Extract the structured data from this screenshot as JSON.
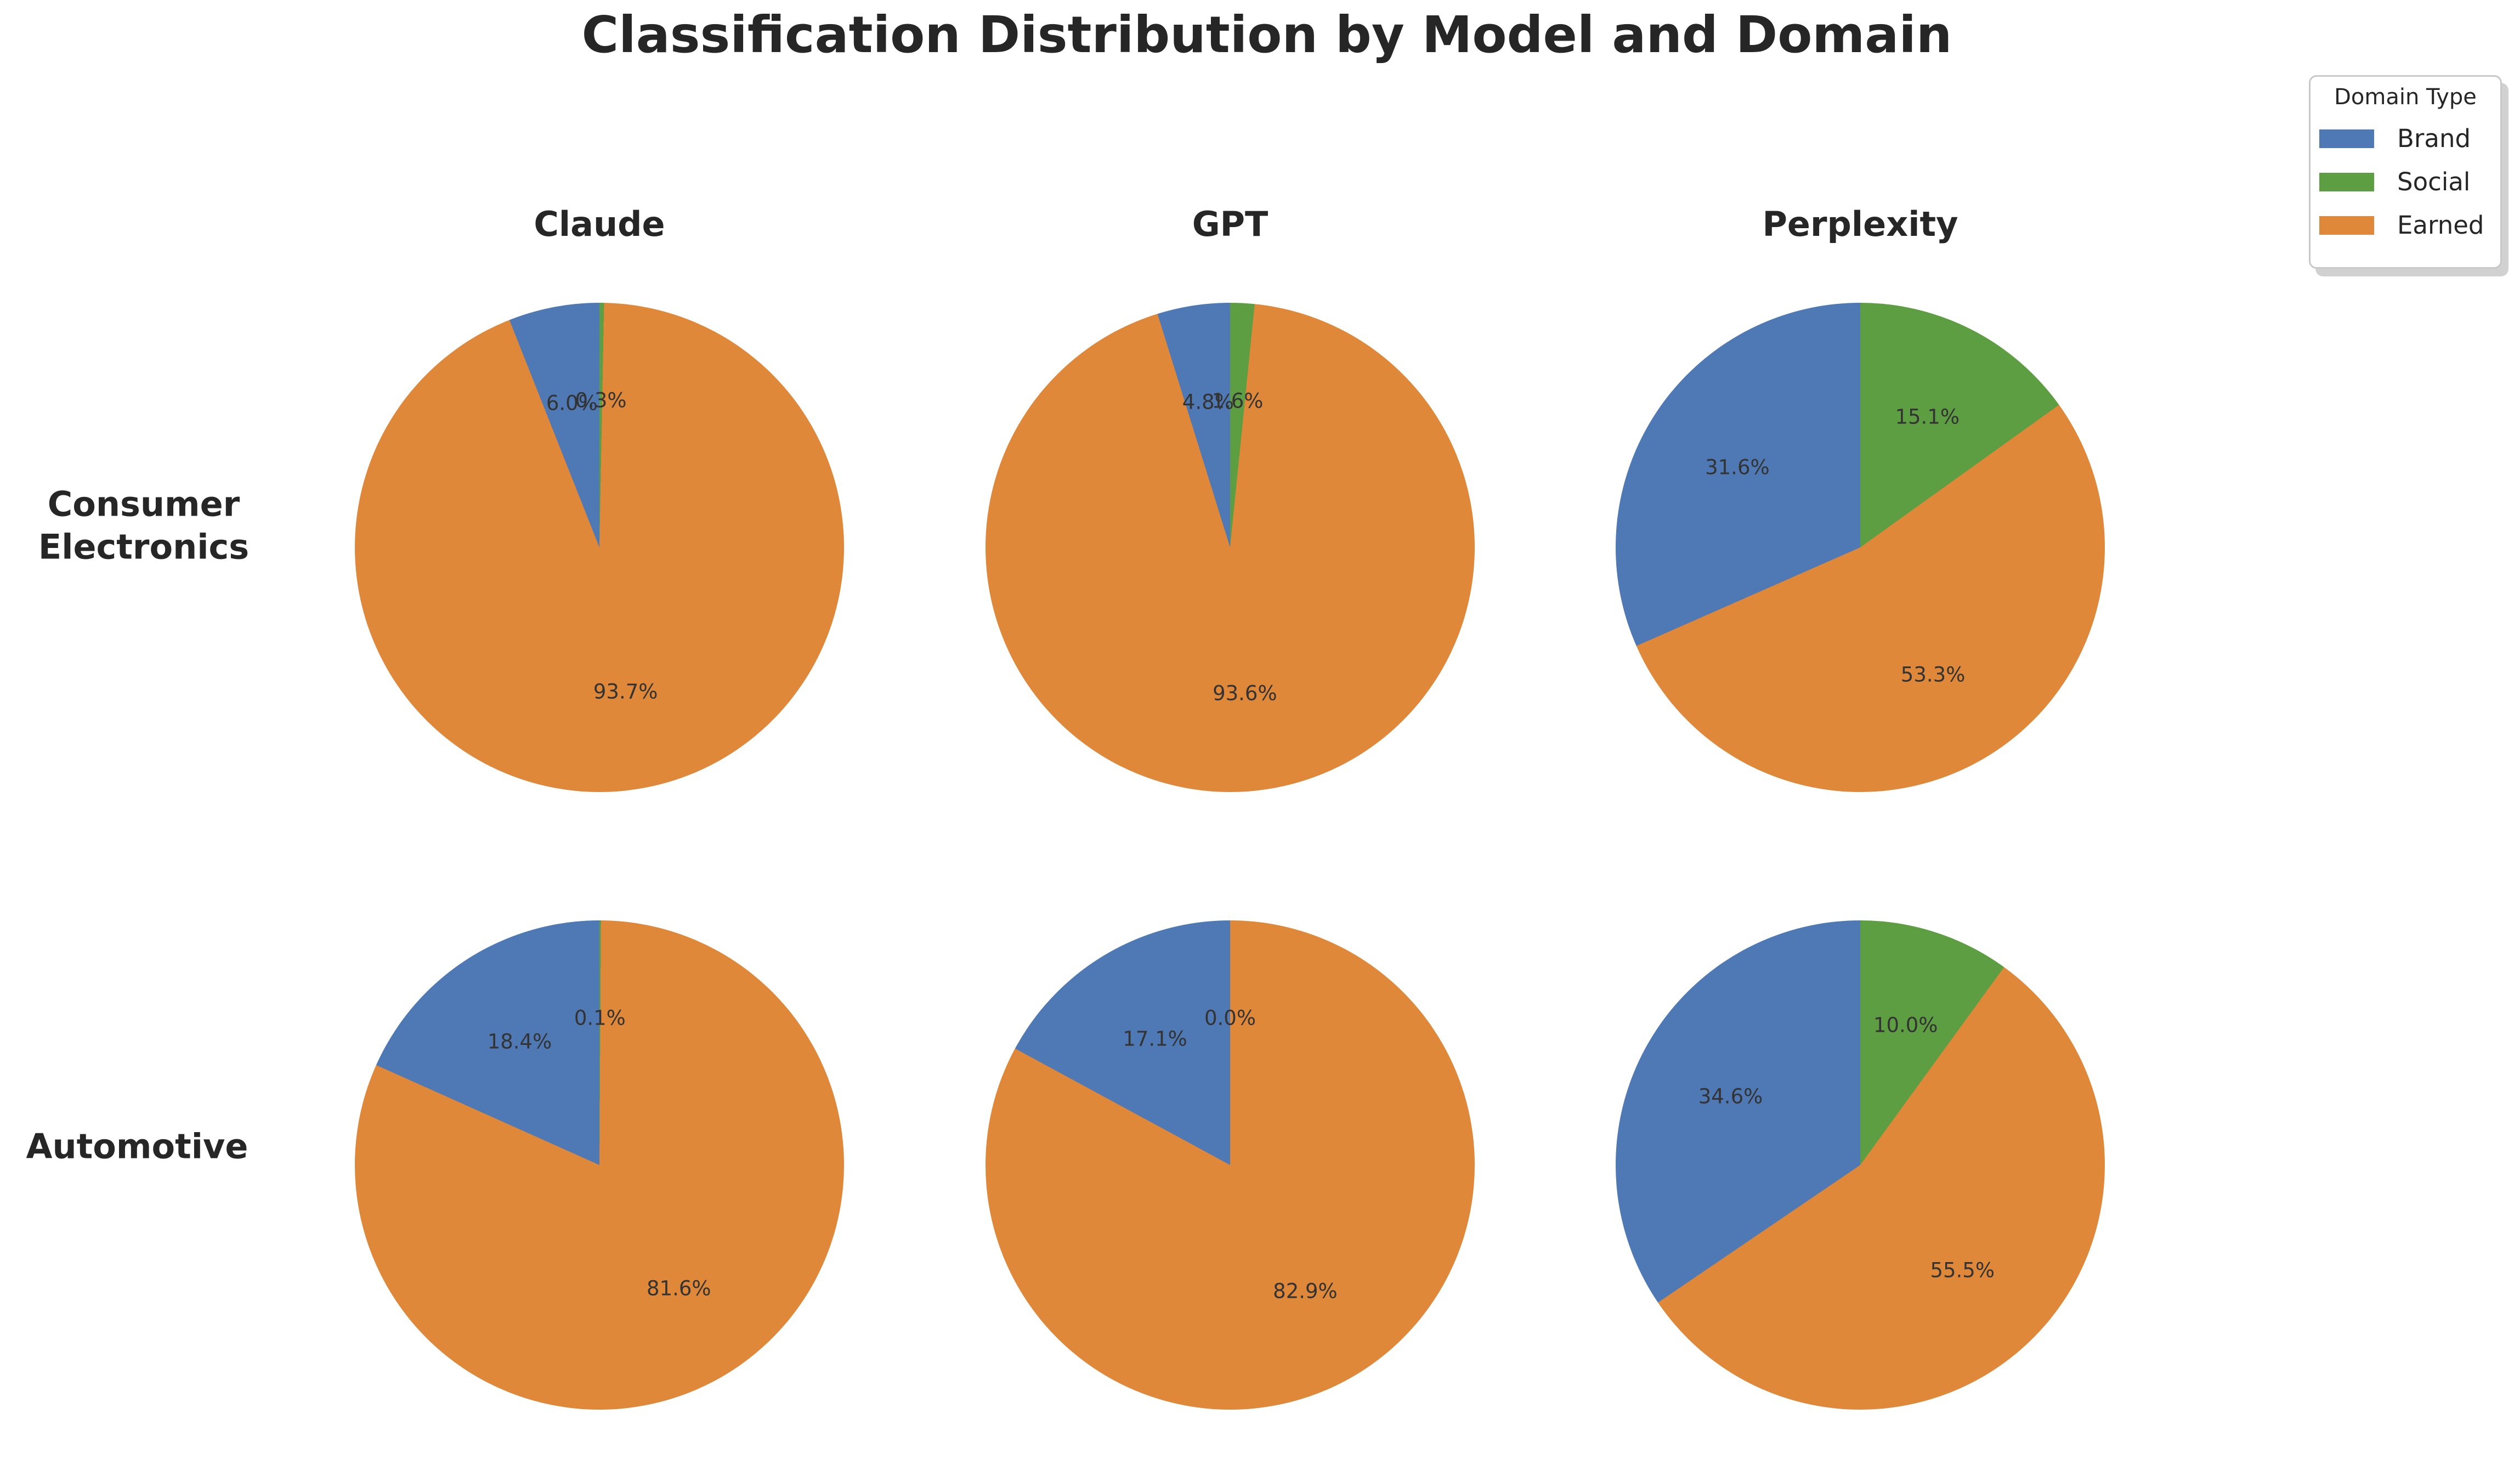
{
  "title": "Classification Distribution by Model and Domain",
  "columns": [
    "Claude",
    "GPT",
    "Perplexity"
  ],
  "rows": [
    {
      "label": "Consumer\nElectronics"
    },
    {
      "label": "Automotive"
    }
  ],
  "legend": {
    "title": "Domain Type",
    "entries": [
      {
        "label": "Brand",
        "color": "#4e79b4"
      },
      {
        "label": "Social",
        "color": "#5e9e43"
      },
      {
        "label": "Earned",
        "color": "#e0883a"
      }
    ]
  },
  "chart_data": {
    "type": "pie",
    "title": "Classification Distribution by Model and Domain",
    "grid": {
      "rows": [
        "Consumer Electronics",
        "Automotive"
      ],
      "cols": [
        "Claude",
        "GPT",
        "Perplexity"
      ]
    },
    "legend_title": "Domain Type",
    "legend_entries": [
      "Brand",
      "Social",
      "Earned"
    ],
    "colors": {
      "Brand": "#4e79b4",
      "Social": "#5e9e43",
      "Earned": "#e0883a"
    },
    "clockwise_from_top_order": [
      "Social",
      "Earned",
      "Brand"
    ],
    "label_radius_fraction": 0.6,
    "pies": [
      {
        "domain": "Consumer Electronics",
        "model": "Claude",
        "slices": [
          {
            "name": "Brand",
            "value": 6.0,
            "label": "6.0%"
          },
          {
            "name": "Social",
            "value": 0.3,
            "label": "0.3%"
          },
          {
            "name": "Earned",
            "value": 93.7,
            "label": "93.7%"
          }
        ]
      },
      {
        "domain": "Consumer Electronics",
        "model": "GPT",
        "slices": [
          {
            "name": "Brand",
            "value": 4.8,
            "label": "4.8%"
          },
          {
            "name": "Social",
            "value": 1.6,
            "label": "1.6%"
          },
          {
            "name": "Earned",
            "value": 93.6,
            "label": "93.6%"
          }
        ]
      },
      {
        "domain": "Consumer Electronics",
        "model": "Perplexity",
        "slices": [
          {
            "name": "Brand",
            "value": 31.6,
            "label": "31.6%"
          },
          {
            "name": "Social",
            "value": 15.1,
            "label": "15.1%"
          },
          {
            "name": "Earned",
            "value": 53.3,
            "label": "53.3%"
          }
        ]
      },
      {
        "domain": "Automotive",
        "model": "Claude",
        "slices": [
          {
            "name": "Brand",
            "value": 18.4,
            "label": "18.4%"
          },
          {
            "name": "Social",
            "value": 0.1,
            "label": "0.1%"
          },
          {
            "name": "Earned",
            "value": 81.6,
            "label": "81.6%"
          }
        ]
      },
      {
        "domain": "Automotive",
        "model": "GPT",
        "slices": [
          {
            "name": "Brand",
            "value": 17.1,
            "label": "17.1%"
          },
          {
            "name": "Social",
            "value": 0.0,
            "label": "0.0%"
          },
          {
            "name": "Earned",
            "value": 82.9,
            "label": "82.9%"
          }
        ]
      },
      {
        "domain": "Automotive",
        "model": "Perplexity",
        "slices": [
          {
            "name": "Brand",
            "value": 34.6,
            "label": "34.6%"
          },
          {
            "name": "Social",
            "value": 10.0,
            "label": "10.0%"
          },
          {
            "name": "Earned",
            "value": 55.5,
            "label": "55.5%"
          }
        ]
      }
    ]
  }
}
